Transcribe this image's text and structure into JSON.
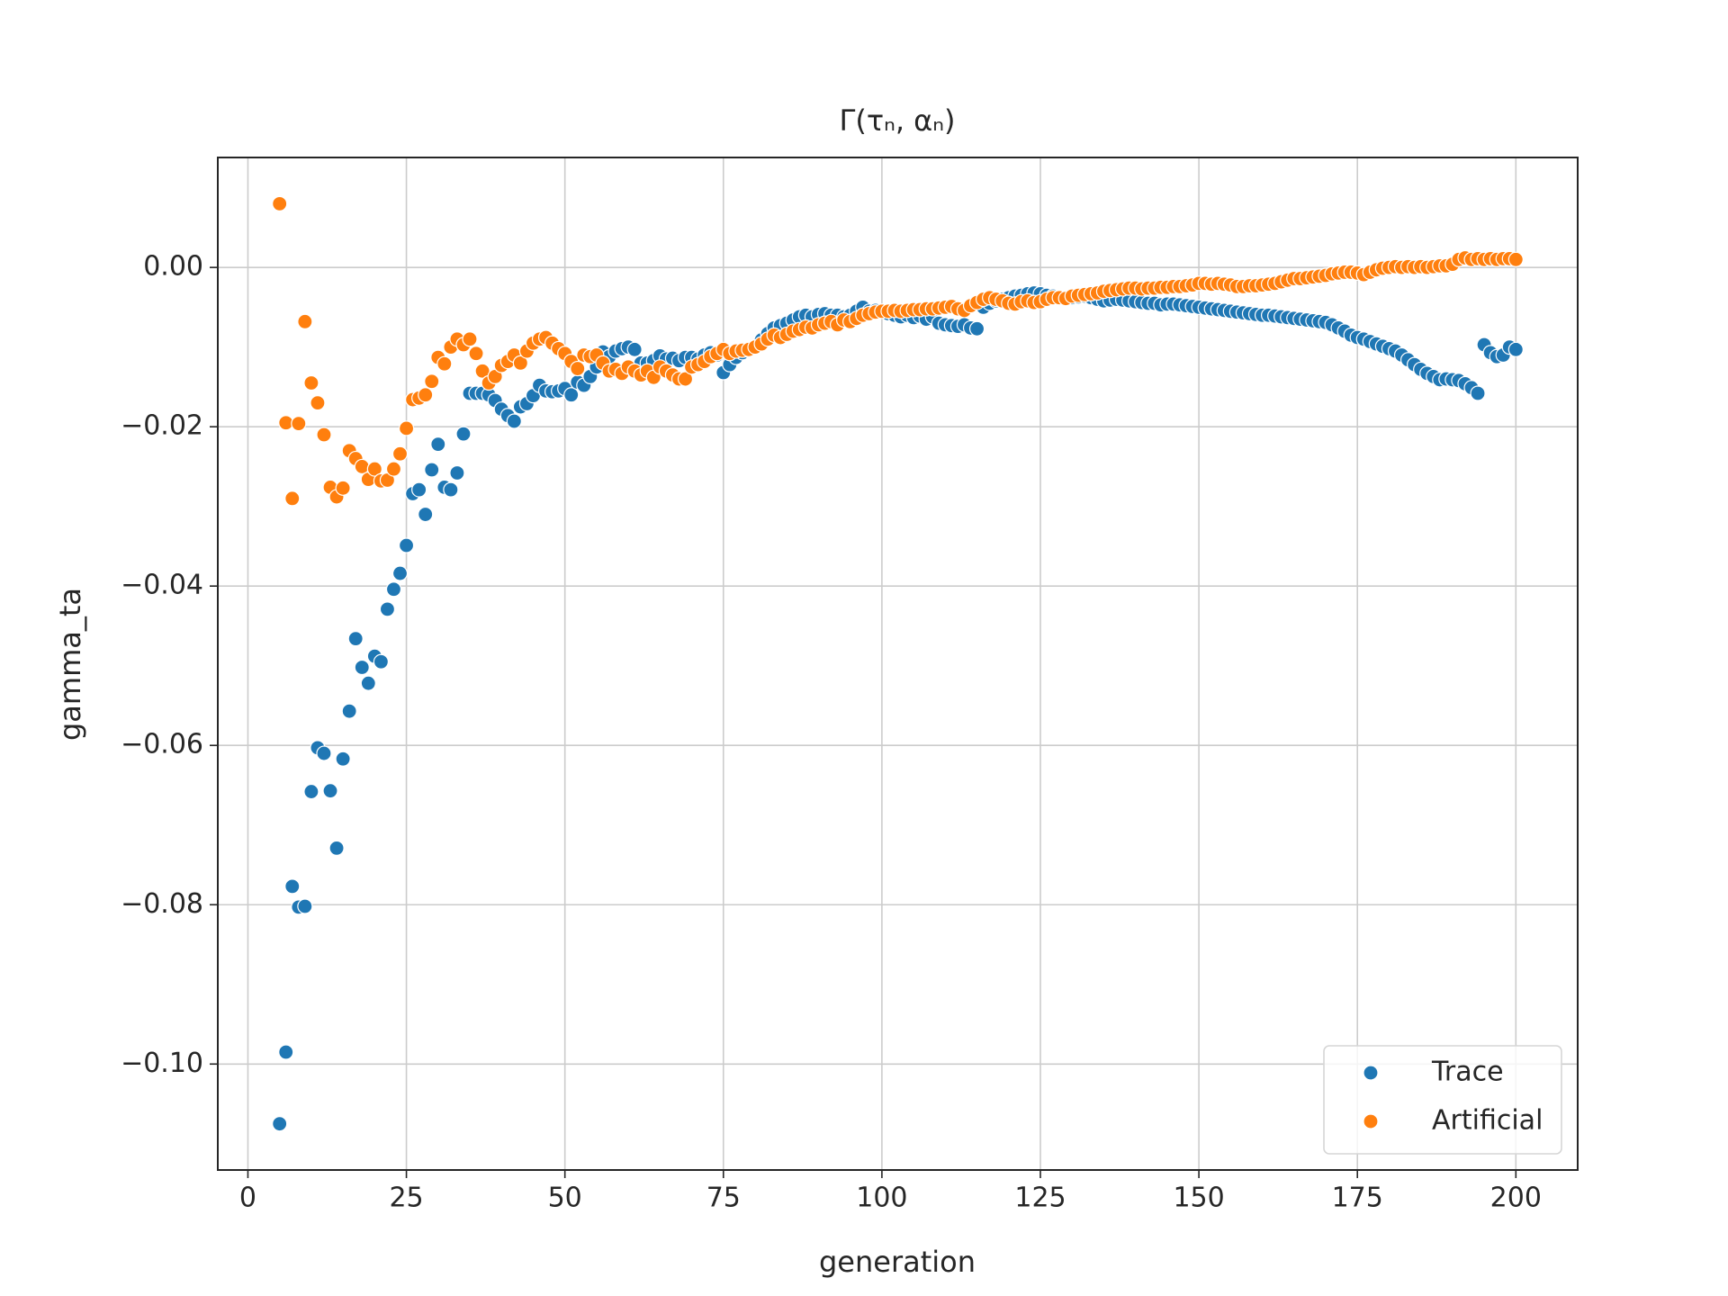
{
  "chart_data": {
    "type": "scatter",
    "title": "Γ(τₙ, αₙ)",
    "xlabel": "generation",
    "ylabel": "gamma_ta",
    "xlim": [
      -4.75,
      209.75
    ],
    "ylim": [
      -0.1133,
      0.0138
    ],
    "xticks": [
      0,
      25,
      50,
      75,
      100,
      125,
      150,
      175,
      200
    ],
    "yticks": [
      {
        "value": 0,
        "label": "0.00"
      },
      {
        "value": -0.02,
        "label": "−0.02"
      },
      {
        "value": -0.04,
        "label": "−0.04"
      },
      {
        "value": -0.06,
        "label": "−0.06"
      },
      {
        "value": -0.08,
        "label": "−0.08"
      },
      {
        "value": -0.1,
        "label": "−0.10"
      }
    ],
    "grid": true,
    "legend": "lower right",
    "x": [
      5,
      6,
      7,
      8,
      9,
      10,
      11,
      12,
      13,
      14,
      15,
      16,
      17,
      18,
      19,
      20,
      21,
      22,
      23,
      24,
      25,
      26,
      27,
      28,
      29,
      30,
      31,
      32,
      33,
      34,
      35,
      36,
      37,
      38,
      39,
      40,
      41,
      42,
      43,
      44,
      45,
      46,
      47,
      48,
      49,
      50,
      51,
      52,
      53,
      54,
      55,
      56,
      57,
      58,
      59,
      60,
      61,
      62,
      63,
      64,
      65,
      66,
      67,
      68,
      69,
      70,
      71,
      72,
      73,
      74,
      75,
      76,
      77,
      78,
      79,
      80,
      81,
      82,
      83,
      84,
      85,
      86,
      87,
      88,
      89,
      90,
      91,
      92,
      93,
      94,
      95,
      96,
      97,
      98,
      99,
      100,
      101,
      102,
      103,
      104,
      105,
      106,
      107,
      108,
      109,
      110,
      111,
      112,
      113,
      114,
      115,
      116,
      117,
      118,
      119,
      120,
      121,
      122,
      123,
      124,
      125,
      126,
      127,
      128,
      129,
      130,
      131,
      132,
      133,
      134,
      135,
      136,
      137,
      138,
      139,
      140,
      141,
      142,
      143,
      144,
      145,
      146,
      147,
      148,
      149,
      150,
      151,
      152,
      153,
      154,
      155,
      156,
      157,
      158,
      159,
      160,
      161,
      162,
      163,
      164,
      165,
      166,
      167,
      168,
      169,
      170,
      171,
      172,
      173,
      174,
      175,
      176,
      177,
      178,
      179,
      180,
      181,
      182,
      183,
      184,
      185,
      186,
      187,
      188,
      189,
      190,
      191,
      192,
      193,
      194,
      195,
      196,
      197,
      198,
      199,
      200
    ],
    "series": [
      {
        "name": "Trace",
        "color": "#1f77b4",
        "values": [
          -0.1075,
          -0.0985,
          -0.0777,
          -0.0803,
          -0.0802,
          -0.0658,
          -0.0603,
          -0.061,
          -0.0657,
          -0.0729,
          -0.0617,
          -0.0557,
          -0.0466,
          -0.0502,
          -0.0522,
          -0.0488,
          -0.0495,
          -0.0429,
          -0.0404,
          -0.0384,
          -0.0349,
          -0.0284,
          -0.0279,
          -0.031,
          -0.0254,
          -0.0222,
          -0.0276,
          -0.0279,
          -0.0258,
          -0.0209,
          -0.0158,
          -0.0158,
          -0.0158,
          -0.016,
          -0.0167,
          -0.0178,
          -0.0186,
          -0.0193,
          -0.0175,
          -0.0171,
          -0.0161,
          -0.0148,
          -0.0155,
          -0.0156,
          -0.0155,
          -0.0152,
          -0.016,
          -0.0144,
          -0.0148,
          -0.0137,
          -0.0125,
          -0.0106,
          -0.0112,
          -0.0105,
          -0.0102,
          -0.01,
          -0.0103,
          -0.012,
          -0.012,
          -0.0117,
          -0.0111,
          -0.0115,
          -0.0114,
          -0.0117,
          -0.0113,
          -0.0113,
          -0.0115,
          -0.011,
          -0.0107,
          -0.011,
          -0.0132,
          -0.0122,
          -0.0113,
          -0.0107,
          -0.0104,
          -0.0099,
          -0.0091,
          -0.0083,
          -0.0076,
          -0.0073,
          -0.007,
          -0.0066,
          -0.0062,
          -0.006,
          -0.0062,
          -0.0059,
          -0.0058,
          -0.006,
          -0.006,
          -0.0062,
          -0.006,
          -0.0055,
          -0.005,
          -0.0055,
          -0.0054,
          -0.0055,
          -0.0058,
          -0.006,
          -0.0062,
          -0.006,
          -0.0063,
          -0.0061,
          -0.0065,
          -0.0062,
          -0.007,
          -0.0072,
          -0.0073,
          -0.0074,
          -0.0072,
          -0.0076,
          -0.0077,
          -0.005,
          -0.0045,
          -0.0042,
          -0.004,
          -0.0038,
          -0.0036,
          -0.0035,
          -0.0033,
          -0.0032,
          -0.0033,
          -0.0035,
          -0.0036,
          -0.0037,
          -0.0038,
          -0.0038,
          -0.0037,
          -0.0036,
          -0.0038,
          -0.004,
          -0.0042,
          -0.0041,
          -0.004,
          -0.0041,
          -0.0042,
          -0.0043,
          -0.0044,
          -0.0045,
          -0.0045,
          -0.0047,
          -0.0046,
          -0.0046,
          -0.0047,
          -0.0048,
          -0.0049,
          -0.005,
          -0.0051,
          -0.0052,
          -0.0053,
          -0.0054,
          -0.0055,
          -0.0056,
          -0.0057,
          -0.0058,
          -0.0059,
          -0.006,
          -0.006,
          -0.0061,
          -0.0062,
          -0.0063,
          -0.0064,
          -0.0065,
          -0.0066,
          -0.0067,
          -0.0068,
          -0.0069,
          -0.0072,
          -0.0076,
          -0.008,
          -0.0085,
          -0.0088,
          -0.009,
          -0.0093,
          -0.0096,
          -0.0099,
          -0.0102,
          -0.0105,
          -0.011,
          -0.0116,
          -0.0122,
          -0.0128,
          -0.0133,
          -0.0137,
          -0.0141,
          -0.014,
          -0.0141,
          -0.0142,
          -0.0146,
          -0.0151,
          -0.0158,
          -0.0097,
          -0.0107,
          -0.0112,
          -0.011,
          -0.01,
          -0.0103
        ]
      },
      {
        "name": "Artificial",
        "color": "#ff7f0e",
        "values": [
          0.008,
          -0.0195,
          -0.029,
          -0.0196,
          -0.0068,
          -0.0145,
          -0.017,
          -0.021,
          -0.0276,
          -0.0288,
          -0.0277,
          -0.023,
          -0.024,
          -0.025,
          -0.0266,
          -0.0253,
          -0.0268,
          -0.0267,
          -0.0253,
          -0.0234,
          -0.0202,
          -0.0166,
          -0.0164,
          -0.016,
          -0.0143,
          -0.0113,
          -0.0121,
          -0.01,
          -0.009,
          -0.0097,
          -0.009,
          -0.0108,
          -0.013,
          -0.0145,
          -0.0137,
          -0.0123,
          -0.0118,
          -0.011,
          -0.012,
          -0.0105,
          -0.0095,
          -0.009,
          -0.0088,
          -0.0095,
          -0.0102,
          -0.0108,
          -0.0118,
          -0.0127,
          -0.011,
          -0.0112,
          -0.011,
          -0.012,
          -0.013,
          -0.0128,
          -0.0133,
          -0.0125,
          -0.013,
          -0.0135,
          -0.013,
          -0.0138,
          -0.0125,
          -0.013,
          -0.0135,
          -0.014,
          -0.014,
          -0.0125,
          -0.0122,
          -0.0118,
          -0.0112,
          -0.0108,
          -0.0103,
          -0.0108,
          -0.0105,
          -0.0104,
          -0.0103,
          -0.01,
          -0.0096,
          -0.009,
          -0.0085,
          -0.0088,
          -0.0084,
          -0.008,
          -0.0078,
          -0.0075,
          -0.0076,
          -0.0072,
          -0.007,
          -0.0068,
          -0.0072,
          -0.0066,
          -0.0068,
          -0.0064,
          -0.006,
          -0.0058,
          -0.0056,
          -0.0055,
          -0.0055,
          -0.0054,
          -0.0055,
          -0.0054,
          -0.0053,
          -0.0053,
          -0.0052,
          -0.0052,
          -0.0051,
          -0.005,
          -0.0049,
          -0.0052,
          -0.0054,
          -0.0048,
          -0.0044,
          -0.004,
          -0.0038,
          -0.004,
          -0.0042,
          -0.0045,
          -0.0046,
          -0.0043,
          -0.0042,
          -0.0044,
          -0.0043,
          -0.004,
          -0.0038,
          -0.0038,
          -0.0039,
          -0.0036,
          -0.0035,
          -0.0034,
          -0.0033,
          -0.0032,
          -0.003,
          -0.0029,
          -0.0028,
          -0.0027,
          -0.0026,
          -0.0026,
          -0.0027,
          -0.0026,
          -0.0026,
          -0.0025,
          -0.0025,
          -0.0024,
          -0.0024,
          -0.0023,
          -0.0022,
          -0.002,
          -0.002,
          -0.0021,
          -0.002,
          -0.0021,
          -0.0022,
          -0.0024,
          -0.0024,
          -0.0023,
          -0.0023,
          -0.0022,
          -0.0021,
          -0.002,
          -0.0018,
          -0.0016,
          -0.0014,
          -0.0014,
          -0.0013,
          -0.0012,
          -0.0011,
          -0.001,
          -0.0008,
          -0.0007,
          -0.0006,
          -0.0006,
          -0.0007,
          -0.0009,
          -0.0006,
          -0.0003,
          -0.0001,
          0.0,
          0.0001,
          0.0,
          0.0001,
          0.0,
          0.0001,
          0.0,
          0.0001,
          0.0002,
          0.0002,
          0.0004,
          0.001,
          0.0012,
          0.001,
          0.0011,
          0.001,
          0.0011,
          0.001,
          0.0011,
          0.0011,
          0.001
        ]
      }
    ]
  }
}
